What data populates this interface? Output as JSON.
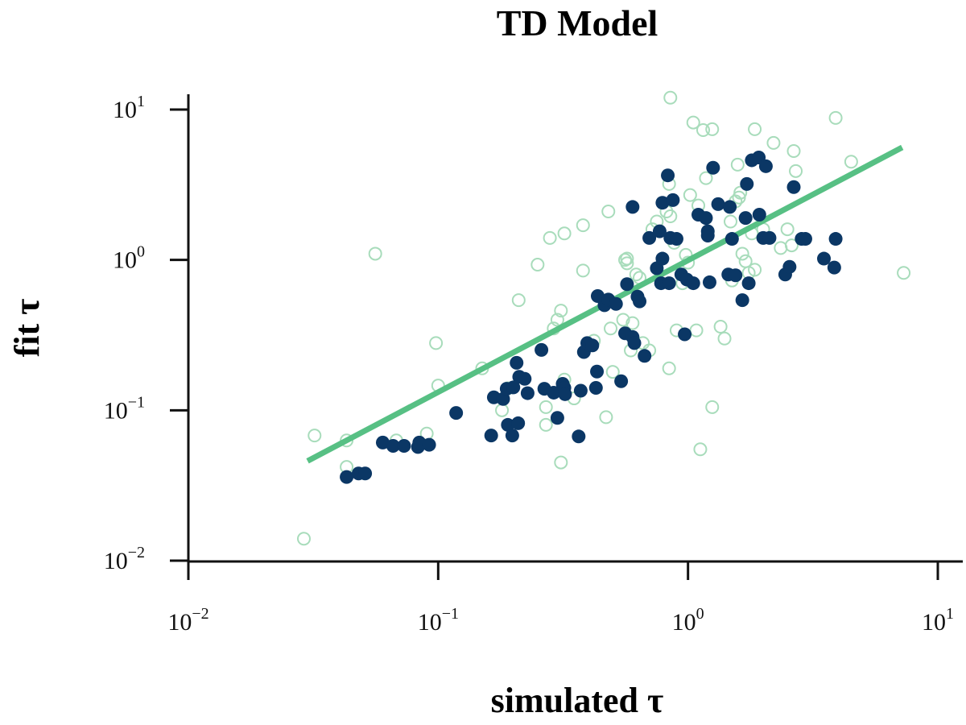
{
  "chart_data": {
    "type": "scatter",
    "title": "TD Model",
    "xlabel": "simulated τ",
    "ylabel": "fit τ",
    "xscale": "log",
    "yscale": "log",
    "xlim": [
      0.01,
      12
    ],
    "ylim": [
      0.01,
      12
    ],
    "grid": false,
    "x_ticks": [
      {
        "base": "10",
        "exp": "−2",
        "value": 0.01
      },
      {
        "base": "10",
        "exp": "−1",
        "value": 0.1
      },
      {
        "base": "10",
        "exp": "0",
        "value": 1
      },
      {
        "base": "10",
        "exp": "1",
        "value": 10
      }
    ],
    "y_ticks": [
      {
        "base": "10",
        "exp": "−2",
        "value": 0.01
      },
      {
        "base": "10",
        "exp": "−1",
        "value": 0.1
      },
      {
        "base": "10",
        "exp": "0",
        "value": 1
      },
      {
        "base": "10",
        "exp": "1",
        "value": 10
      }
    ],
    "fit_line": {
      "color": "#57c084",
      "x": [
        0.03,
        7.2
      ],
      "y": [
        0.046,
        5.6
      ]
    },
    "series": [
      {
        "marker": "filled-circle",
        "color": "#0b3765",
        "points": [
          [
            0.043,
            0.036
          ],
          [
            0.048,
            0.038
          ],
          [
            0.051,
            0.038
          ],
          [
            0.06,
            0.061
          ],
          [
            0.066,
            0.058
          ],
          [
            0.073,
            0.058
          ],
          [
            0.083,
            0.057
          ],
          [
            0.084,
            0.061
          ],
          [
            0.092,
            0.059
          ],
          [
            0.118,
            0.096
          ],
          [
            0.163,
            0.068
          ],
          [
            0.167,
            0.122
          ],
          [
            0.182,
            0.119
          ],
          [
            0.188,
            0.139
          ],
          [
            0.19,
            0.08
          ],
          [
            0.198,
            0.068
          ],
          [
            0.2,
            0.142
          ],
          [
            0.206,
            0.207
          ],
          [
            0.209,
            0.082
          ],
          [
            0.211,
            0.167
          ],
          [
            0.222,
            0.162
          ],
          [
            0.228,
            0.13
          ],
          [
            0.259,
            0.252
          ],
          [
            0.266,
            0.139
          ],
          [
            0.29,
            0.131
          ],
          [
            0.3,
            0.089
          ],
          [
            0.315,
            0.15
          ],
          [
            0.32,
            0.141
          ],
          [
            0.322,
            0.128
          ],
          [
            0.365,
            0.067
          ],
          [
            0.372,
            0.135
          ],
          [
            0.383,
            0.244
          ],
          [
            0.395,
            0.28
          ],
          [
            0.414,
            0.27
          ],
          [
            0.428,
            0.141
          ],
          [
            0.432,
            0.181
          ],
          [
            0.435,
            0.575
          ],
          [
            0.463,
            0.5
          ],
          [
            0.48,
            0.545
          ],
          [
            0.515,
            0.51
          ],
          [
            0.54,
            0.156
          ],
          [
            0.56,
            0.325
          ],
          [
            0.57,
            0.69
          ],
          [
            0.6,
            0.307
          ],
          [
            0.6,
            2.25
          ],
          [
            0.61,
            0.28
          ],
          [
            0.628,
            0.57
          ],
          [
            0.64,
            0.53
          ],
          [
            0.67,
            0.23
          ],
          [
            0.7,
            1.4
          ],
          [
            0.75,
            0.88
          ],
          [
            0.77,
            1.55
          ],
          [
            0.78,
            0.7
          ],
          [
            0.79,
            2.4
          ],
          [
            0.79,
            1.02
          ],
          [
            0.83,
            3.65
          ],
          [
            0.84,
            0.7
          ],
          [
            0.85,
            1.4
          ],
          [
            0.87,
            2.5
          ],
          [
            0.9,
            1.38
          ],
          [
            0.94,
            0.8
          ],
          [
            0.97,
            0.32
          ],
          [
            0.99,
            0.74
          ],
          [
            1.05,
            0.7
          ],
          [
            1.1,
            2.0
          ],
          [
            1.18,
            1.9
          ],
          [
            1.2,
            1.55
          ],
          [
            1.2,
            1.45
          ],
          [
            1.22,
            0.71
          ],
          [
            1.26,
            4.1
          ],
          [
            1.32,
            2.35
          ],
          [
            1.45,
            0.8
          ],
          [
            1.47,
            2.25
          ],
          [
            1.5,
            1.38
          ],
          [
            1.55,
            0.79
          ],
          [
            1.65,
            0.54
          ],
          [
            1.7,
            1.9
          ],
          [
            1.72,
            3.2
          ],
          [
            1.75,
            0.7
          ],
          [
            1.8,
            4.6
          ],
          [
            1.92,
            4.8
          ],
          [
            1.93,
            2.0
          ],
          [
            2.0,
            1.4
          ],
          [
            2.05,
            4.2
          ],
          [
            2.12,
            1.4
          ],
          [
            2.45,
            0.8
          ],
          [
            2.55,
            0.9
          ],
          [
            2.65,
            3.05
          ],
          [
            2.85,
            1.38
          ],
          [
            2.95,
            1.38
          ],
          [
            3.5,
            1.02
          ],
          [
            3.85,
            0.89
          ],
          [
            3.9,
            1.38
          ]
        ]
      },
      {
        "marker": "open-circle",
        "color": "#a8dcbb",
        "points": [
          [
            0.029,
            0.014
          ],
          [
            0.032,
            0.068
          ],
          [
            0.043,
            0.063
          ],
          [
            0.043,
            0.042
          ],
          [
            0.056,
            1.1
          ],
          [
            0.068,
            0.063
          ],
          [
            0.09,
            0.07
          ],
          [
            0.098,
            0.28
          ],
          [
            0.1,
            0.146
          ],
          [
            0.15,
            0.19
          ],
          [
            0.18,
            0.1
          ],
          [
            0.19,
            0.14
          ],
          [
            0.21,
            0.54
          ],
          [
            0.25,
            0.93
          ],
          [
            0.27,
            0.08
          ],
          [
            0.27,
            0.105
          ],
          [
            0.28,
            1.4
          ],
          [
            0.29,
            0.35
          ],
          [
            0.3,
            0.4
          ],
          [
            0.31,
            0.46
          ],
          [
            0.31,
            0.045
          ],
          [
            0.32,
            0.16
          ],
          [
            0.32,
            1.5
          ],
          [
            0.35,
            0.12
          ],
          [
            0.38,
            0.85
          ],
          [
            0.38,
            1.7
          ],
          [
            0.42,
            0.29
          ],
          [
            0.47,
            0.09
          ],
          [
            0.48,
            2.1
          ],
          [
            0.49,
            0.35
          ],
          [
            0.5,
            0.18
          ],
          [
            0.55,
            0.4
          ],
          [
            0.56,
            1.0
          ],
          [
            0.57,
            1.02
          ],
          [
            0.57,
            0.95
          ],
          [
            0.59,
            0.25
          ],
          [
            0.6,
            0.38
          ],
          [
            0.62,
            0.8
          ],
          [
            0.64,
            0.76
          ],
          [
            0.66,
            0.28
          ],
          [
            0.7,
            0.25
          ],
          [
            0.72,
            1.6
          ],
          [
            0.75,
            1.8
          ],
          [
            0.82,
            2.1
          ],
          [
            0.84,
            3.2
          ],
          [
            0.84,
            0.19
          ],
          [
            0.85,
            1.95
          ],
          [
            0.85,
            12.0
          ],
          [
            0.88,
            1.3
          ],
          [
            0.9,
            0.34
          ],
          [
            0.95,
            0.7
          ],
          [
            0.98,
            1.08
          ],
          [
            1.0,
            0.96
          ],
          [
            1.02,
            2.7
          ],
          [
            1.05,
            8.2
          ],
          [
            1.08,
            0.34
          ],
          [
            1.1,
            2.3
          ],
          [
            1.12,
            0.055
          ],
          [
            1.15,
            7.3
          ],
          [
            1.18,
            3.5
          ],
          [
            1.25,
            7.4
          ],
          [
            1.25,
            0.105
          ],
          [
            1.35,
            0.36
          ],
          [
            1.4,
            0.3
          ],
          [
            1.48,
            1.8
          ],
          [
            1.5,
            0.73
          ],
          [
            1.55,
            2.45
          ],
          [
            1.58,
            4.3
          ],
          [
            1.6,
            2.6
          ],
          [
            1.62,
            2.8
          ],
          [
            1.65,
            1.1
          ],
          [
            1.7,
            0.98
          ],
          [
            1.75,
            0.82
          ],
          [
            1.8,
            1.5
          ],
          [
            1.85,
            0.86
          ],
          [
            1.85,
            7.4
          ],
          [
            2.0,
            1.6
          ],
          [
            2.2,
            6.0
          ],
          [
            2.35,
            1.2
          ],
          [
            2.5,
            1.6
          ],
          [
            2.6,
            1.25
          ],
          [
            2.65,
            5.3
          ],
          [
            2.7,
            3.9
          ],
          [
            3.9,
            8.8
          ],
          [
            4.5,
            4.5
          ],
          [
            7.3,
            0.82
          ]
        ]
      }
    ]
  }
}
